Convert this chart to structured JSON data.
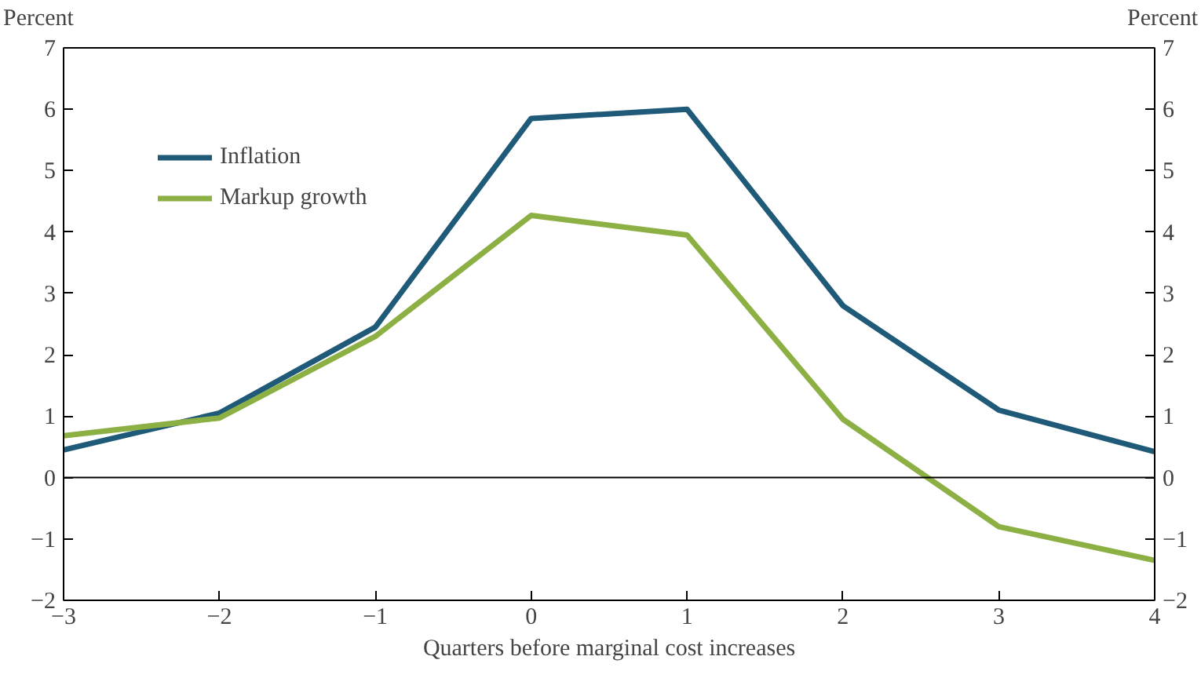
{
  "chart_data": {
    "type": "line",
    "xlabel": "Quarters before marginal cost increases",
    "ylabel": "Percent",
    "y2label": "Percent",
    "x": [
      -3,
      -2,
      -1,
      0,
      1,
      2,
      3,
      4
    ],
    "series": [
      {
        "name": "Inflation",
        "color": "#1f5a78",
        "values": [
          0.45,
          1.05,
          2.45,
          5.85,
          6.0,
          2.8,
          1.1,
          0.42
        ]
      },
      {
        "name": "Markup growth",
        "color": "#8cb043",
        "values": [
          0.68,
          0.97,
          2.3,
          4.27,
          3.95,
          0.95,
          -0.8,
          -1.35
        ]
      }
    ],
    "xlim": [
      -3,
      4
    ],
    "xticks": [
      {
        "value": -3,
        "label": "−3"
      },
      {
        "value": -2,
        "label": "−2"
      },
      {
        "value": -1,
        "label": "−1"
      },
      0,
      1,
      2,
      3,
      4
    ],
    "ylim": [
      -2,
      7
    ],
    "yticks": [
      {
        "value": -2,
        "label": "−2"
      },
      {
        "value": -1,
        "label": "−1"
      },
      0,
      1,
      2,
      3,
      4,
      5,
      6,
      7
    ],
    "y2lim": [
      -2,
      7
    ],
    "y2ticks": [
      {
        "value": -2,
        "label": "−2"
      },
      {
        "value": -1,
        "label": "−1"
      },
      0,
      1,
      2,
      3,
      4,
      5,
      6,
      7
    ],
    "ref_lines": [
      {
        "axis": "y",
        "value": 0,
        "label": null,
        "color": "#000000"
      }
    ],
    "legend": "top left",
    "grid": false,
    "marker": "none",
    "line_style": "solid"
  }
}
